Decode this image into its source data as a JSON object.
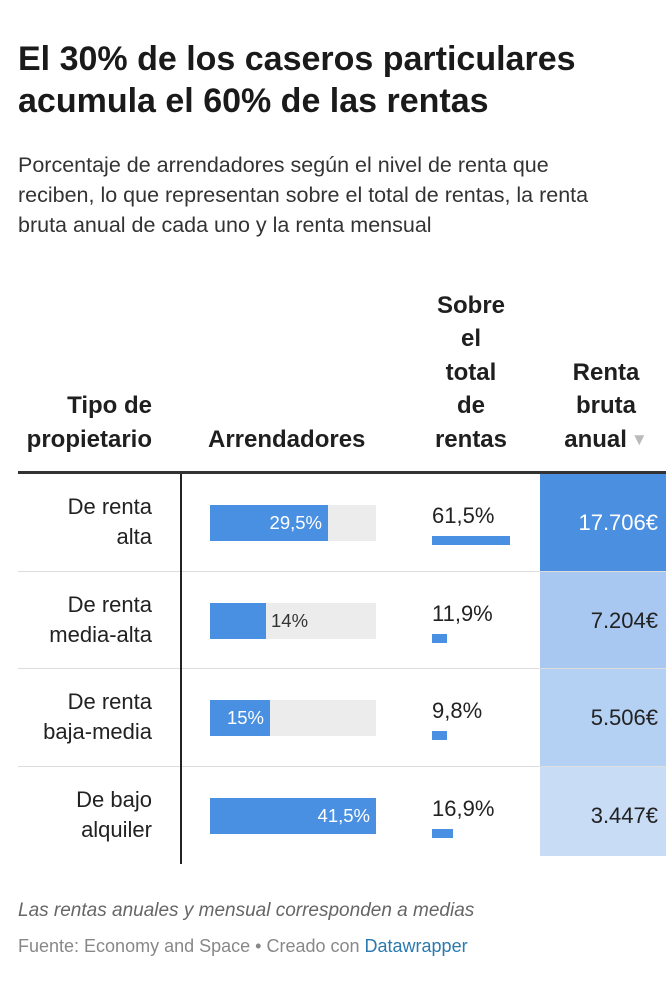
{
  "title": "El 30% de los caseros particulares acumula el 60% de las rentas",
  "subtitle_lines": [
    "Porcentaje de arrendadores según el nivel de renta que",
    "reciben, lo que representan sobre el total de rentas, la renta",
    "bruta anual de cada uno y la renta mensual"
  ],
  "headers": {
    "tipo": [
      "Tipo de",
      "propietario"
    ],
    "arrendadores": "Arrendadores",
    "sobre": [
      "Sobre",
      "el",
      "total",
      "de",
      "rentas"
    ],
    "renta": [
      "Renta",
      "bruta",
      "anual"
    ]
  },
  "colors": {
    "bar": "#4a90e2",
    "bar_bg": "#ececec",
    "renta_dark": "#4a8fe0",
    "renta_light": "#a8c8f1",
    "renta_lighter": "#c8dcf6"
  },
  "chart_data": {
    "type": "table",
    "title": "El 30% de los caseros particulares acumula el 60% de las rentas",
    "columns": [
      "Tipo de propietario",
      "Arrendadores",
      "Sobre el total de rentas",
      "Renta bruta anual"
    ],
    "sorted_by": "Renta bruta anual",
    "sort_order": "descending",
    "rows": [
      {
        "tipo": [
          "De renta",
          "alta"
        ],
        "arrendadores": 29.5,
        "arrendadores_label": "29,5%",
        "label_position": "inside",
        "sobre": 61.5,
        "sobre_label": "61,5%",
        "renta": 17706,
        "renta_label": "17.706€",
        "renta_color": "#4a8fe0",
        "renta_text_color": "#ffffff"
      },
      {
        "tipo": [
          "De renta",
          "media-alta"
        ],
        "arrendadores": 14,
        "arrendadores_label": "14%",
        "label_position": "outside",
        "sobre": 11.9,
        "sobre_label": "11,9%",
        "renta": 7204,
        "renta_label": "7.204€",
        "renta_color": "#a8c8f1",
        "renta_text_color": "#222222"
      },
      {
        "tipo": [
          "De renta",
          "baja-media"
        ],
        "arrendadores": 15,
        "arrendadores_label": "15%",
        "label_position": "inside",
        "sobre": 9.8,
        "sobre_label": "9,8%",
        "renta": 5506,
        "renta_label": "5.506€",
        "renta_color": "#b4d0f3",
        "renta_text_color": "#222222"
      },
      {
        "tipo": [
          "De bajo",
          "alquiler"
        ],
        "arrendadores": 41.5,
        "arrendadores_label": "41,5%",
        "label_position": "inside",
        "sobre": 16.9,
        "sobre_label": "16,9%",
        "renta": 3447,
        "renta_label": "3.447€",
        "renta_color": "#c8dcf6",
        "renta_text_color": "#222222"
      }
    ],
    "arrendadores_max": 41.5,
    "sobre_max": 61.5
  },
  "footer": {
    "note": "Las rentas anuales y mensual corresponden a medias",
    "source_prefix": "Fuente: Economy and Space • Creado con ",
    "source_link": "Datawrapper"
  }
}
